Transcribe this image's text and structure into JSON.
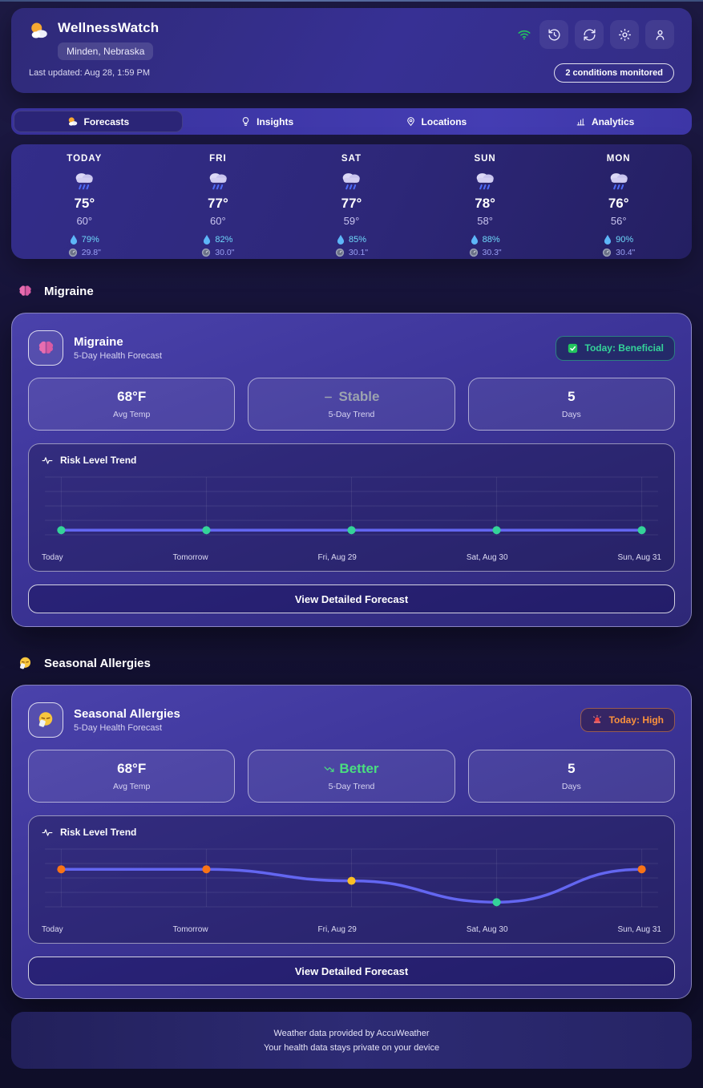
{
  "header": {
    "app_name": "WellnessWatch",
    "logo_icon": "sun-behind-cloud",
    "location": "Minden, Nebraska",
    "last_updated": "Last updated: Aug 28, 1:59 PM",
    "conditions_badge": "2 conditions monitored",
    "status_icons": [
      "wifi-icon",
      "history-icon",
      "refresh-icon",
      "settings-icon",
      "user-icon"
    ],
    "wifi_color": "#22c55e"
  },
  "nav": {
    "tabs": [
      {
        "label": "Forecasts",
        "icon": "sun-behind-cloud-icon",
        "active": true
      },
      {
        "label": "Insights",
        "icon": "lightbulb-icon",
        "active": false
      },
      {
        "label": "Locations",
        "icon": "map-pin-icon",
        "active": false
      },
      {
        "label": "Analytics",
        "icon": "bar-chart-icon",
        "active": false
      }
    ]
  },
  "forecast": {
    "days": [
      {
        "day": "TODAY",
        "icon": "rain-cloud-icon",
        "high": "75°",
        "low": "60°",
        "humidity": "79%",
        "pressure": "29.8\""
      },
      {
        "day": "FRI",
        "icon": "rain-cloud-icon",
        "high": "77°",
        "low": "60°",
        "humidity": "82%",
        "pressure": "30.0\""
      },
      {
        "day": "SAT",
        "icon": "rain-cloud-icon",
        "high": "77°",
        "low": "59°",
        "humidity": "85%",
        "pressure": "30.1\""
      },
      {
        "day": "SUN",
        "icon": "rain-cloud-icon",
        "high": "78°",
        "low": "58°",
        "humidity": "88%",
        "pressure": "30.3\""
      },
      {
        "day": "MON",
        "icon": "rain-cloud-icon",
        "high": "76°",
        "low": "56°",
        "humidity": "90%",
        "pressure": "30.4\""
      }
    ],
    "humidity_icon": "droplet-icon",
    "pressure_icon": "gauge-icon",
    "humidity_color": "#6fd9fb",
    "pressure_color": "#9aa0f4"
  },
  "conditions": [
    {
      "section_title": "Migraine",
      "icon": "brain-icon",
      "title": "Migraine",
      "subtitle": "5-Day Health Forecast",
      "badge": {
        "icon": "check-badge-icon",
        "label": "Today: Beneficial",
        "color": "#34d399"
      },
      "stats": [
        {
          "value": "68°F",
          "label": "Avg Temp"
        },
        {
          "value": "Stable",
          "label": "5-Day Trend",
          "icon": "minus-icon",
          "color": "#9ca3af"
        },
        {
          "value": "5",
          "label": "Days"
        }
      ],
      "chart_title": "Risk Level Trend",
      "chart_title_icon": "pulse-icon",
      "button_label": "View Detailed Forecast"
    },
    {
      "section_title": "Seasonal Allergies",
      "icon": "sneezing-face-icon",
      "title": "Seasonal Allergies",
      "subtitle": "5-Day Health Forecast",
      "badge": {
        "icon": "siren-icon",
        "label": "Today: High",
        "color": "#fb923c"
      },
      "stats": [
        {
          "value": "68°F",
          "label": "Avg Temp"
        },
        {
          "value": "Better",
          "label": "5-Day Trend",
          "icon": "trending-down-icon",
          "color": "#4ade80"
        },
        {
          "value": "5",
          "label": "Days"
        }
      ],
      "chart_title": "Risk Level Trend",
      "chart_title_icon": "pulse-icon",
      "button_label": "View Detailed Forecast"
    }
  ],
  "chart_data": [
    {
      "type": "line",
      "title": "Risk Level Trend",
      "condition": "Migraine",
      "x": [
        "Today",
        "Tomorrow",
        "Fri, Aug 29",
        "Sat, Aug 30",
        "Sun, Aug 31"
      ],
      "values": [
        8,
        8,
        8,
        8,
        8
      ],
      "ylim": [
        0,
        100
      ],
      "grid": true,
      "legend": false,
      "line_color": "#6366f1",
      "point_colors": [
        "#34d399",
        "#34d399",
        "#34d399",
        "#34d399",
        "#34d399"
      ]
    },
    {
      "type": "line",
      "title": "Risk Level Trend",
      "condition": "Seasonal Allergies",
      "x": [
        "Today",
        "Tomorrow",
        "Fri, Aug 29",
        "Sat, Aug 30",
        "Sun, Aug 31"
      ],
      "values": [
        65,
        65,
        45,
        8,
        65
      ],
      "ylim": [
        0,
        100
      ],
      "grid": true,
      "legend": false,
      "line_color": "#6366f1",
      "point_colors": [
        "#f97316",
        "#f97316",
        "#fbbf24",
        "#34d399",
        "#f97316"
      ]
    }
  ],
  "footer": {
    "line1": "Weather data provided by AccuWeather",
    "line2": "Your health data stays private on your device"
  }
}
